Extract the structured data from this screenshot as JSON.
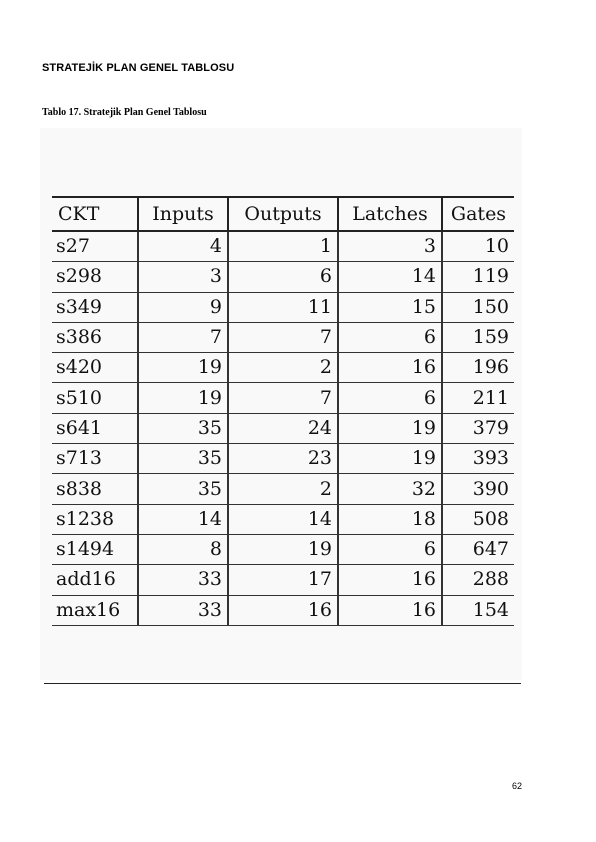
{
  "heading": "STRATEJİK PLAN GENEL TABLOSU",
  "caption": "Tablo 17. Stratejik Plan Genel Tablosu",
  "table": {
    "headers": [
      "CKT",
      "Inputs",
      "Outputs",
      "Latches",
      "Gates"
    ],
    "rows": [
      [
        "s27",
        "4",
        "1",
        "3",
        "10"
      ],
      [
        "s298",
        "3",
        "6",
        "14",
        "119"
      ],
      [
        "s349",
        "9",
        "11",
        "15",
        "150"
      ],
      [
        "s386",
        "7",
        "7",
        "6",
        "159"
      ],
      [
        "s420",
        "19",
        "2",
        "16",
        "196"
      ],
      [
        "s510",
        "19",
        "7",
        "6",
        "211"
      ],
      [
        "s641",
        "35",
        "24",
        "19",
        "379"
      ],
      [
        "s713",
        "35",
        "23",
        "19",
        "393"
      ],
      [
        "s838",
        "35",
        "2",
        "32",
        "390"
      ],
      [
        "s1238",
        "14",
        "14",
        "18",
        "508"
      ],
      [
        "s1494",
        "8",
        "19",
        "6",
        "647"
      ],
      [
        "add16",
        "33",
        "17",
        "16",
        "288"
      ],
      [
        "max16",
        "33",
        "16",
        "16",
        "154"
      ]
    ]
  },
  "page_number": "62"
}
